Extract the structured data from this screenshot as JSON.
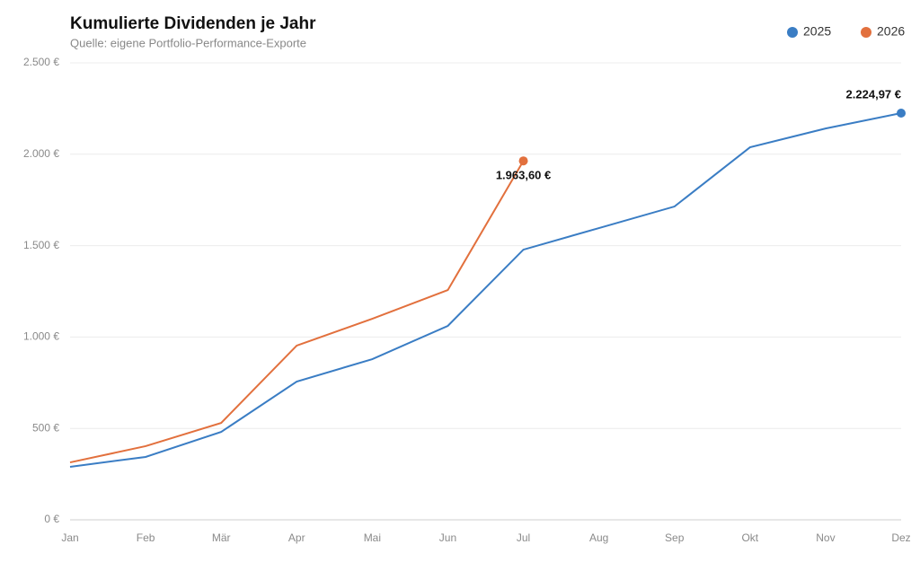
{
  "chart_data": {
    "type": "line",
    "title": "Kumulierte Dividenden je Jahr",
    "subtitle": "Quelle: eigene Portfolio-Performance-Exporte",
    "categories": [
      "Jan",
      "Feb",
      "Mär",
      "Apr",
      "Mai",
      "Jun",
      "Jul",
      "Aug",
      "Sep",
      "Okt",
      "Nov",
      "Dez"
    ],
    "series": [
      {
        "name": "2025",
        "color": "#3a7dc4",
        "values": [
          290,
          344,
          481,
          756,
          879,
          1061,
          1478,
          1596,
          1714,
          2038,
          2141,
          2224.97
        ],
        "value_labels": [
          null,
          null,
          null,
          null,
          null,
          null,
          null,
          null,
          null,
          null,
          null,
          "2.224,97 €"
        ]
      },
      {
        "name": "2026",
        "color": "#e2703d",
        "values": [
          314,
          403,
          530,
          953,
          1100,
          1257,
          1963.6,
          null,
          null,
          null,
          null,
          null
        ],
        "value_labels": [
          null,
          null,
          null,
          null,
          null,
          null,
          "1.963,60 €",
          null,
          null,
          null,
          null,
          null
        ]
      }
    ],
    "ylim": [
      0,
      2500
    ],
    "yticks": [
      {
        "value": 0,
        "label": "0 €"
      },
      {
        "value": 500,
        "label": "500 €"
      },
      {
        "value": 1000,
        "label": "1.000 €"
      },
      {
        "value": 1500,
        "label": "1.500 €"
      },
      {
        "value": 2000,
        "label": "2.000 €"
      },
      {
        "value": 2500,
        "label": "2.500 €"
      }
    ],
    "grid": true,
    "legend": "top-right"
  }
}
